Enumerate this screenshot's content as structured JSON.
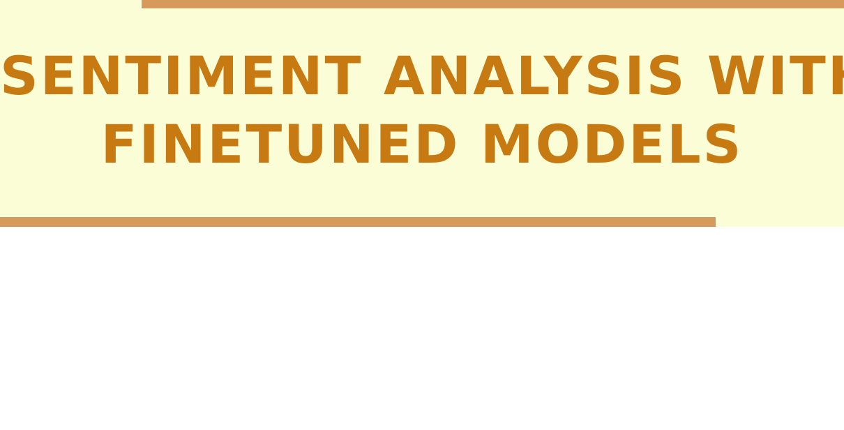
{
  "title": {
    "line1": "SENTIMENT ANALYSIS WITH",
    "line2": "FINETUNED MODELS"
  },
  "colors": {
    "banner_background": "#fafdd6",
    "rule": "#d69a5c",
    "title_text": "#c77a12",
    "page_background": "#ffffff"
  }
}
